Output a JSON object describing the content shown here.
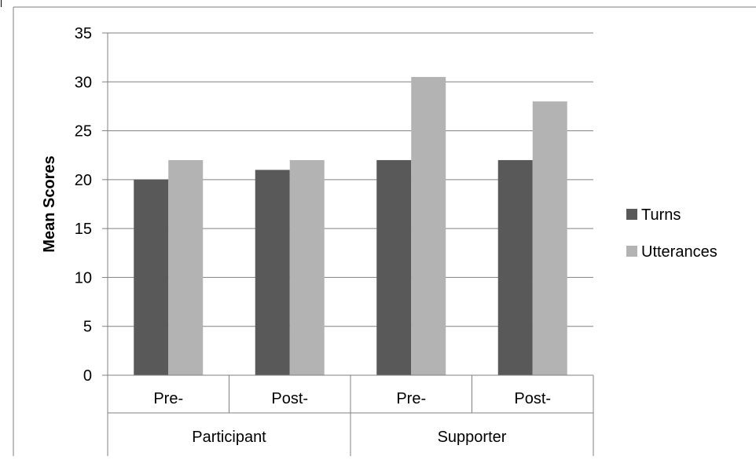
{
  "chart_data": {
    "type": "bar",
    "title": "",
    "ylabel": "Mean Scores",
    "xlabel": "",
    "ylim": [
      0,
      35
    ],
    "ytick_step": 5,
    "grid": true,
    "legend_position": "right",
    "categories": [
      {
        "label": "Pre-",
        "group": "Participant"
      },
      {
        "label": "Post-",
        "group": "Participant"
      },
      {
        "label": "Pre-",
        "group": "Supporter"
      },
      {
        "label": "Post-",
        "group": "Supporter"
      }
    ],
    "groups": [
      "Participant",
      "Supporter"
    ],
    "series": [
      {
        "name": "Turns",
        "color": "#595959",
        "values": [
          20,
          21,
          22,
          22
        ]
      },
      {
        "name": "Utterances",
        "color": "#b3b3b3",
        "values": [
          22,
          22,
          30.5,
          28
        ]
      }
    ]
  }
}
